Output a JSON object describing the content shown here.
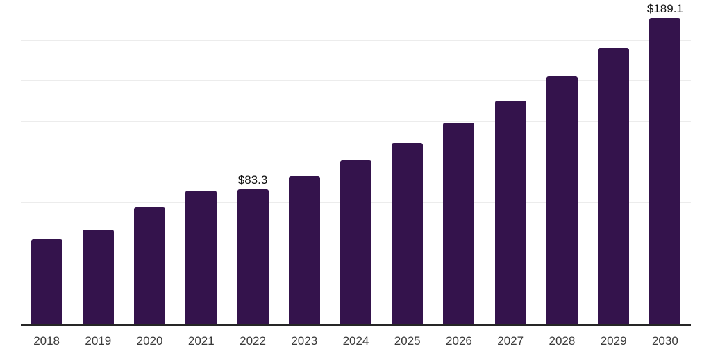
{
  "chart_data": {
    "type": "bar",
    "title": "",
    "xlabel": "",
    "ylabel": "",
    "categories": [
      "2018",
      "2019",
      "2020",
      "2021",
      "2022",
      "2023",
      "2024",
      "2025",
      "2026",
      "2027",
      "2028",
      "2029",
      "2030"
    ],
    "values": [
      52.6,
      58.5,
      72.1,
      82.6,
      83.3,
      91.6,
      101.5,
      112.1,
      124.2,
      138.1,
      152.9,
      170.7,
      189.1
    ],
    "data_labels": [
      {
        "category": "2022",
        "text": "$83.3"
      },
      {
        "category": "2030",
        "text": "$189.1"
      }
    ],
    "ylim": [
      0,
      200
    ],
    "grid_step": 25,
    "gridlines": "horizontal",
    "legend": "none",
    "y_axis_labels": "none",
    "colors": {
      "bar": "#34134C",
      "axis_line": "#262626",
      "gridline": "#ececec",
      "tick_label": "#3a3a3a",
      "data_label": "#111111",
      "background": "#ffffff"
    }
  }
}
